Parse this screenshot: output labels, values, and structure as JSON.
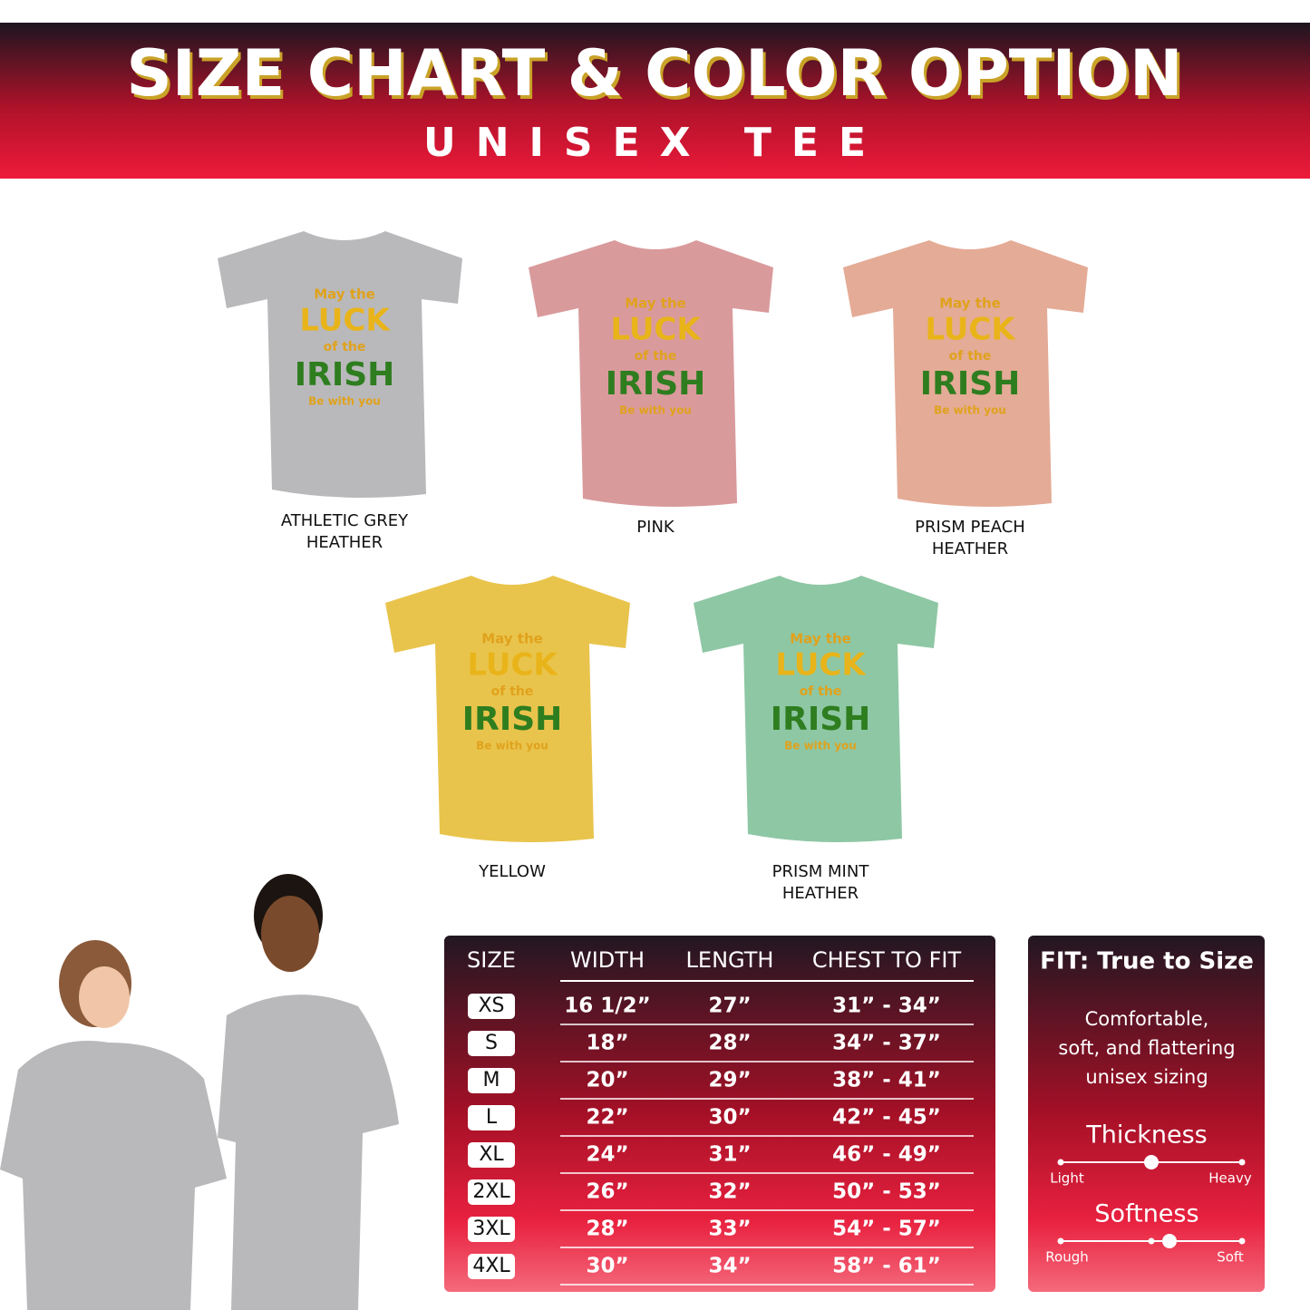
{
  "header": {
    "title": "SIZE CHART & COLOR OPTION",
    "subtitle": "UNISEX TEE"
  },
  "design": {
    "lines": [
      "May the",
      "LUCK",
      "of the",
      "IRISH",
      "Be with you"
    ]
  },
  "colors": [
    {
      "name": "ATHLETIC GREY\nHEATHER",
      "color": "#b9b9bb"
    },
    {
      "name": "PINK",
      "color": "#d99a9c"
    },
    {
      "name": "PRISM PEACH\nHEATHER",
      "color": "#e4ab96"
    },
    {
      "name": "YELLOW",
      "color": "#e9c44c"
    },
    {
      "name": "PRISM MINT\nHEATHER",
      "color": "#8ec7a4"
    }
  ],
  "table": {
    "headers": [
      "SIZE",
      "WIDTH",
      "LENGTH",
      "CHEST TO FIT"
    ],
    "rows": [
      [
        "XS",
        "16 1/2”",
        "27”",
        "31” - 34”"
      ],
      [
        "S",
        "18”",
        "28”",
        "34” - 37”"
      ],
      [
        "M",
        "20”",
        "29”",
        "38” - 41”"
      ],
      [
        "L",
        "22”",
        "30”",
        "42” - 45”"
      ],
      [
        "XL",
        "24”",
        "31”",
        "46” - 49”"
      ],
      [
        "2XL",
        "26”",
        "32”",
        "50” - 53”"
      ],
      [
        "3XL",
        "28”",
        "33”",
        "54” - 57”"
      ],
      [
        "4XL",
        "30”",
        "34”",
        "58” - 61”"
      ]
    ]
  },
  "fit": {
    "title": "FIT: True to Size",
    "description": "Comfortable,\nsoft, and flattering\nunisex sizing",
    "scales": [
      {
        "name": "Thickness",
        "low": "Light",
        "high": "Heavy",
        "position": 0.5
      },
      {
        "name": "Softness",
        "low": "Rough",
        "high": "Soft",
        "position": 0.6
      }
    ]
  }
}
